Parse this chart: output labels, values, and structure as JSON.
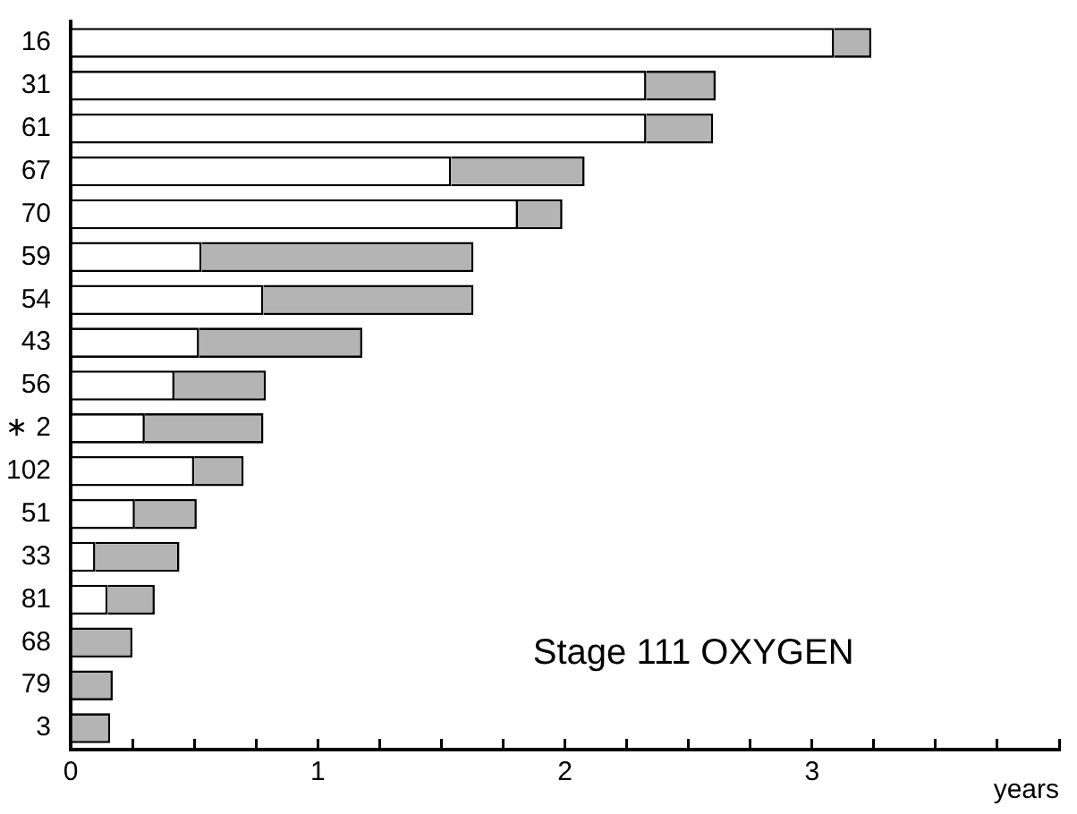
{
  "chart_data": {
    "type": "bar",
    "orientation": "horizontal",
    "stacked": true,
    "categories": [
      "16",
      "31",
      "61",
      "67",
      "70",
      "59",
      "54",
      "43",
      "56",
      "∗ 2",
      "102",
      "51",
      "33",
      "81",
      "68",
      "79",
      "3"
    ],
    "series": [
      {
        "color": "#ffffff",
        "values": [
          3.09,
          2.33,
          2.33,
          1.54,
          1.81,
          0.53,
          0.78,
          0.52,
          0.42,
          0.3,
          0.5,
          0.26,
          0.1,
          0.15,
          0,
          0,
          0
        ]
      },
      {
        "color": "#b4b4b4",
        "values": [
          0.15,
          0.28,
          0.27,
          0.54,
          0.18,
          1.1,
          0.85,
          0.66,
          0.37,
          0.48,
          0.2,
          0.25,
          0.34,
          0.19,
          0.25,
          0.17,
          0.16
        ]
      }
    ],
    "xlabel": "years",
    "xlim": [
      0,
      4
    ],
    "xticks": [
      0,
      {
        "value": 0.25,
        "label": null
      },
      {
        "value": 0.5,
        "label": null
      },
      {
        "value": 0.75,
        "label": null
      },
      1,
      {
        "value": 1.25,
        "label": null
      },
      {
        "value": 1.5,
        "label": null
      },
      {
        "value": 1.75,
        "label": null
      },
      2,
      {
        "value": 2.25,
        "label": null
      },
      {
        "value": 2.5,
        "label": null
      },
      {
        "value": 2.75,
        "label": null
      },
      3,
      {
        "value": 3.25,
        "label": null
      },
      {
        "value": 3.5,
        "label": null
      },
      {
        "value": 3.75,
        "label": null
      },
      {
        "value": 4,
        "label": null
      }
    ],
    "grid": false,
    "legend": false,
    "annotations": [
      "Stage 111 OXYGEN"
    ]
  }
}
